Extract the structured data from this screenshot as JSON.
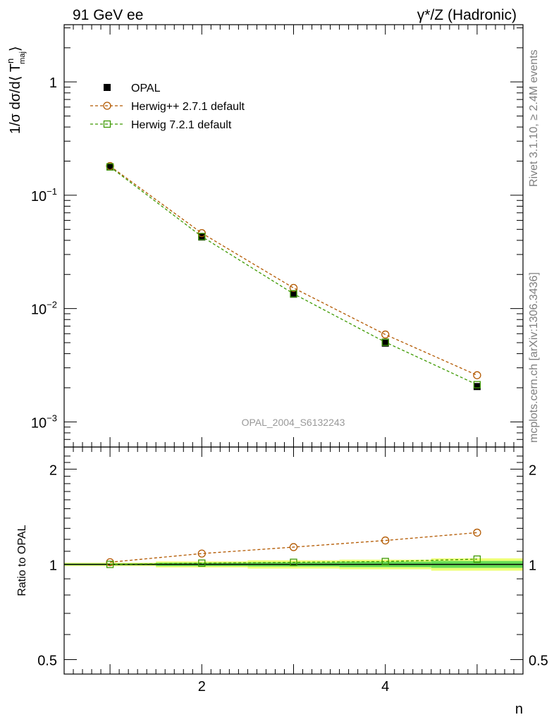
{
  "header": {
    "left": "91 GeV ee",
    "right": "γ*/Z (Hadronic)"
  },
  "side": {
    "rivet": "Rivet 3.1.10, ≥ 2.4M events",
    "mcplots": "mcplots.cern.ch [arXiv:1306.3436]"
  },
  "watermark": "OPAL_2004_S6132243",
  "chart_data": {
    "type": "line",
    "xlabel": "n",
    "ylabel": "1/σ dσ/d⟨ T",
    "ylabel_sup": "n",
    "ylabel_sub": "maj",
    "ylabel_close": "⟩",
    "ratio_ylabel": "Ratio to OPAL",
    "xlim": [
      0.5,
      5.5
    ],
    "ylim": [
      0.0006,
      3.2
    ],
    "ratio_ylim": [
      0.45,
      2.35
    ],
    "xticks": [
      2,
      4
    ],
    "main_yticks": [
      {
        "value": 1,
        "base": "1",
        "exp": ""
      },
      {
        "value": 0.1,
        "base": "10",
        "exp": "−1"
      },
      {
        "value": 0.01,
        "base": "10",
        "exp": "−2"
      },
      {
        "value": 0.001,
        "base": "10",
        "exp": "−3"
      }
    ],
    "ratio_yticks": [
      {
        "value": 2,
        "label": "2"
      },
      {
        "value": 1,
        "label": "1"
      },
      {
        "value": 0.5,
        "label": "0.5"
      }
    ],
    "legend_position": "top-left",
    "x": [
      1,
      2,
      3,
      4,
      5
    ],
    "series": [
      {
        "name": "OPAL",
        "color": "#000000",
        "marker": "filled-square",
        "values": [
          0.178,
          0.0428,
          0.0134,
          0.00495,
          0.00205
        ],
        "ratio": [
          1.0,
          1.0,
          1.0,
          1.0,
          1.0
        ]
      },
      {
        "name": "Herwig++ 2.7.1 default",
        "color": "#b35900",
        "marker": "open-circle",
        "values": [
          0.181,
          0.0463,
          0.0152,
          0.0059,
          0.00258
        ],
        "ratio": [
          1.016,
          1.082,
          1.134,
          1.19,
          1.26
        ]
      },
      {
        "name": "Herwig 7.2.1 default",
        "color": "#3d9900",
        "marker": "open-square",
        "values": [
          0.178,
          0.0432,
          0.0135,
          0.00505,
          0.00213
        ],
        "ratio": [
          1.0,
          1.009,
          1.015,
          1.021,
          1.039
        ]
      }
    ],
    "uncertainty_band": {
      "color_inner": "#66dd55",
      "color_outer": "#eeff77",
      "bins": [
        [
          0.5,
          1.5,
          0.006,
          0.012
        ],
        [
          1.5,
          2.5,
          0.012,
          0.022
        ],
        [
          2.5,
          3.5,
          0.015,
          0.03
        ],
        [
          3.5,
          4.5,
          0.02,
          0.035
        ],
        [
          4.5,
          5.5,
          0.025,
          0.045
        ]
      ]
    }
  }
}
